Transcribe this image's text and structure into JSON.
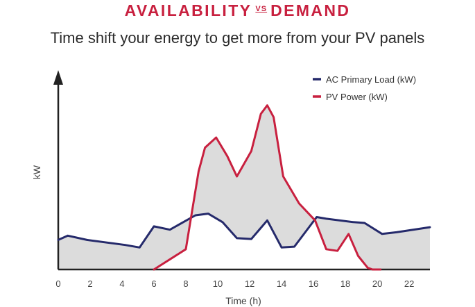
{
  "header": {
    "title_left": "AVAILABILITY",
    "title_vs": "VS",
    "title_right": "DEMAND",
    "subtitle": "Time shift your energy to get more from your PV panels"
  },
  "colors": {
    "title": "#c8203f",
    "load": "#252a6b",
    "pv": "#c8203f",
    "fill": "#dcdcdc",
    "axis": "#222222"
  },
  "chart_data": {
    "type": "line",
    "xlabel": "Time (h)",
    "ylabel": "kW",
    "xlim": [
      0,
      23.3
    ],
    "ylim": [
      0,
      11
    ],
    "xticks": [
      0,
      2,
      4,
      6,
      8,
      10,
      12,
      14,
      16,
      18,
      20,
      22
    ],
    "grid": false,
    "legend_position": "top-right",
    "fill_between": "between series",
    "series": [
      {
        "name": "AC Primary Load (kW)",
        "color": "#252a6b",
        "x": [
          0,
          0.6,
          1.8,
          4.2,
          5.1,
          6.0,
          7.0,
          8.6,
          9.4,
          10.3,
          11.2,
          12.1,
          13.1,
          14.0,
          14.8,
          16.2,
          16.8,
          18.5,
          19.2,
          20.3,
          21.2,
          23.3
        ],
        "y": [
          1.75,
          2.0,
          1.75,
          1.45,
          1.3,
          2.55,
          2.35,
          3.2,
          3.3,
          2.8,
          1.85,
          1.8,
          2.9,
          1.3,
          1.35,
          3.1,
          3.0,
          2.8,
          2.75,
          2.1,
          2.2,
          2.5
        ]
      },
      {
        "name": "PV Power (kW)",
        "color": "#c8203f",
        "x": [
          6.0,
          7.5,
          8.0,
          8.8,
          9.2,
          9.9,
          10.6,
          11.2,
          12.1,
          12.7,
          13.1,
          13.5,
          14.1,
          15.1,
          16.1,
          16.8,
          17.5,
          18.2,
          18.8,
          19.4,
          19.7,
          20.2
        ],
        "y": [
          0,
          0.9,
          1.2,
          5.8,
          7.2,
          7.8,
          6.7,
          5.5,
          7.0,
          9.2,
          9.7,
          9.0,
          5.5,
          3.9,
          2.9,
          1.2,
          1.1,
          2.1,
          0.8,
          0.1,
          0,
          0
        ]
      }
    ]
  }
}
